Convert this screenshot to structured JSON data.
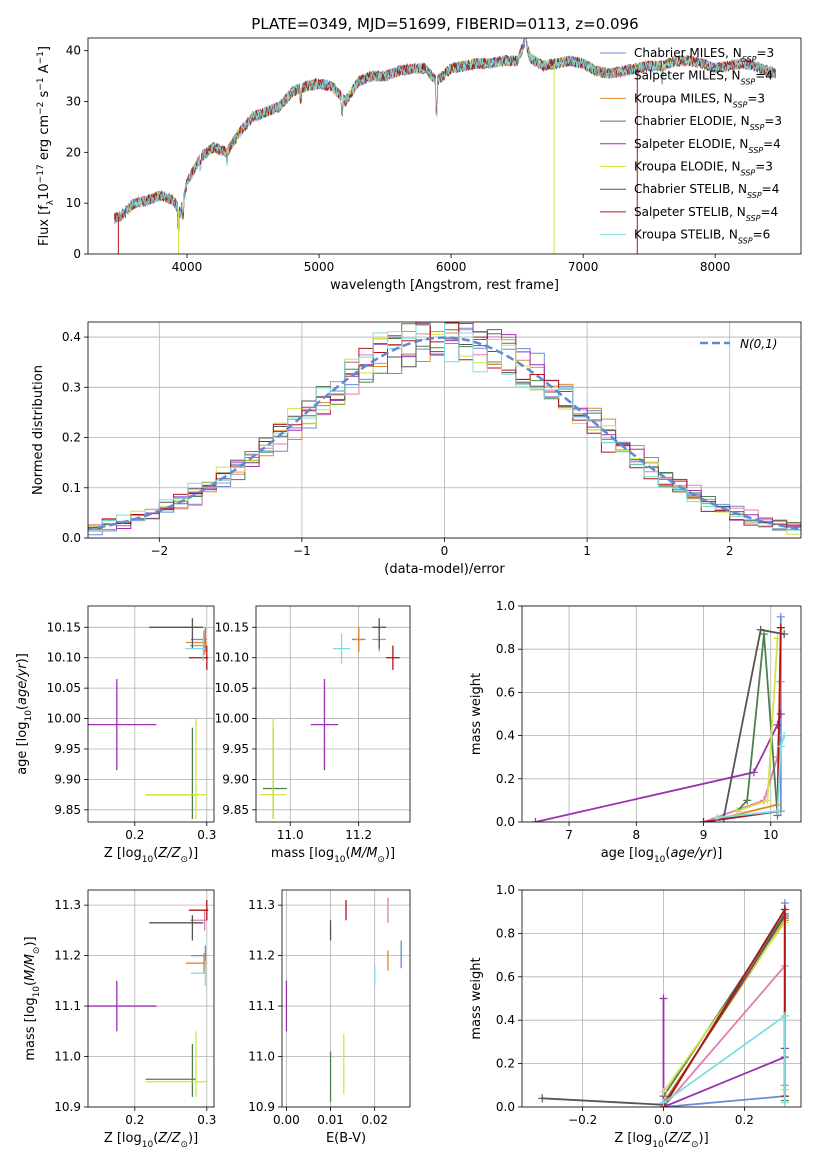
{
  "figure": {
    "title": "PLATE=0349, MJD=51699, FIBERID=0113, z=0.096"
  },
  "colors": {
    "Chabrier MILES": "#6a8bd8",
    "Salpeter MILES": "#e07eac",
    "Kroupa MILES": "#e08a2a",
    "Chabrier ELODIE": "#4f7f4f",
    "Salpeter ELODIE": "#9b30b0",
    "Kroupa ELODIE": "#d4e34a",
    "Chabrier STELIB": "#555555",
    "Salpeter STELIB": "#b01515",
    "Kroupa STELIB": "#7fdde0"
  },
  "legend_spectrum": [
    {
      "label": "Chabrier MILES, N_SSP=3",
      "color": "#6a8bd8"
    },
    {
      "label": "Salpeter MILES, N_SSP=4",
      "color": "#e07eac"
    },
    {
      "label": "Kroupa MILES, N_SSP=3",
      "color": "#e08a2a"
    },
    {
      "label": "Chabrier ELODIE, N_SSP=3",
      "color": "#4f7f4f"
    },
    {
      "label": "Salpeter ELODIE, N_SSP=4",
      "color": "#9b30b0"
    },
    {
      "label": "Kroupa ELODIE, N_SSP=3",
      "color": "#d4e34a"
    },
    {
      "label": "Chabrier STELIB, N_SSP=4",
      "color": "#555555"
    },
    {
      "label": "Salpeter STELIB, N_SSP=4",
      "color": "#b01515"
    },
    {
      "label": "Kroupa STELIB, N_SSP=6",
      "color": "#7fdde0"
    }
  ],
  "chart_data": [
    {
      "id": "spectrum",
      "type": "line",
      "xlabel": "wavelength [Angstrom, rest frame]",
      "ylabel": "Flux [f_λ10^-17 erg cm^-2 s^-1 A^-1]",
      "xlim": [
        3250,
        8650
      ],
      "ylim": [
        0,
        42.5
      ],
      "xticks": [
        4000,
        5000,
        6000,
        7000,
        8000
      ],
      "yticks": [
        0,
        10,
        20,
        30,
        40
      ],
      "grid": false,
      "legend": "top-right",
      "spectrum_envelope": {
        "x": [
          3450,
          3500,
          3600,
          3700,
          3800,
          3900,
          3950,
          4000,
          4100,
          4200,
          4300,
          4400,
          4500,
          4600,
          4700,
          4800,
          4900,
          5000,
          5100,
          5200,
          5300,
          5400,
          5500,
          5600,
          5700,
          5800,
          5890,
          6000,
          6100,
          6200,
          6300,
          6400,
          6500,
          6563,
          6600,
          6700,
          6800,
          6900,
          7000,
          7100,
          7200,
          7300,
          7400,
          7500,
          7600,
          7700,
          7800,
          7900,
          8000,
          8100,
          8200,
          8300,
          8400,
          8460
        ],
        "y": [
          7,
          7.5,
          10,
          10.5,
          11.5,
          10.5,
          8,
          14,
          19,
          21,
          20,
          24,
          27,
          28,
          29,
          32,
          33,
          33.5,
          33,
          30,
          34,
          35,
          35,
          36,
          36.5,
          36.5,
          34,
          36.5,
          37,
          37.5,
          37.5,
          38,
          38,
          42,
          38.5,
          37,
          37.5,
          38,
          37.5,
          36,
          35.5,
          36,
          36.5,
          37,
          37,
          38,
          38,
          37.5,
          36.5,
          37,
          37.5,
          37,
          36,
          35.5
        ]
      },
      "dropouts": [
        {
          "series": "Salpeter STELIB",
          "x": 3480
        },
        {
          "series": "Kroupa ELODIE",
          "x": 3935
        },
        {
          "series": "Kroupa ELODIE",
          "x": 6780
        },
        {
          "series": "Salpeter STELIB",
          "x": 7410
        }
      ]
    },
    {
      "id": "residuals",
      "type": "histogram",
      "xlabel": "(data-model)/error",
      "ylabel": "Normed distribution",
      "xlim": [
        -2.5,
        2.5
      ],
      "ylim": [
        0,
        0.43
      ],
      "xticks": [
        -2,
        -1,
        0,
        1,
        2
      ],
      "yticks": [
        0.0,
        0.1,
        0.2,
        0.3,
        0.4
      ],
      "grid": true,
      "legend": "top-right",
      "reference_curve": {
        "label": "N(0,1)",
        "mean": 0,
        "sigma": 1,
        "color": "#5b8bd6"
      },
      "bin_width": 0.1
    },
    {
      "id": "age_vs_Z",
      "type": "errorbar",
      "xlabel": "Z [log10(Z/Z⊙)]",
      "ylabel": "age  [log10(age/yr)]",
      "xlim": [
        0.135,
        0.31
      ],
      "ylim": [
        9.83,
        10.185
      ],
      "xticks": [
        0.2,
        0.3
      ],
      "yticks": [
        9.85,
        9.9,
        9.95,
        10.0,
        10.05,
        10.1,
        10.15
      ],
      "grid": true,
      "points": [
        {
          "series": "Chabrier MILES",
          "x": 0.298,
          "y": 10.13,
          "xerr": [
            0.02,
            0.002
          ],
          "yerr": [
            0.02,
            0.02
          ]
        },
        {
          "series": "Salpeter MILES",
          "x": 0.297,
          "y": 10.12,
          "xerr": [
            0.02,
            0.003
          ],
          "yerr": [
            0.015,
            0.02
          ]
        },
        {
          "series": "Kroupa MILES",
          "x": 0.296,
          "y": 10.125,
          "xerr": [
            0.025,
            0.004
          ],
          "yerr": [
            0.02,
            0.02
          ]
        },
        {
          "series": "Chabrier ELODIE",
          "x": 0.28,
          "y": 9.875,
          "xerr": [
            0.065,
            0.005
          ],
          "yerr": [
            0.04,
            0.11
          ]
        },
        {
          "series": "Salpeter ELODIE",
          "x": 0.175,
          "y": 9.99,
          "xerr": [
            0.055,
            0.055
          ],
          "yerr": [
            0.075,
            0.075
          ]
        },
        {
          "series": "Kroupa ELODIE",
          "x": 0.285,
          "y": 9.875,
          "xerr": [
            0.07,
            0.015
          ],
          "yerr": [
            0.04,
            0.125
          ]
        },
        {
          "series": "Chabrier STELIB",
          "x": 0.28,
          "y": 10.15,
          "xerr": [
            0.06,
            0.015
          ],
          "yerr": [
            0.035,
            0.015
          ]
        },
        {
          "series": "Salpeter STELIB",
          "x": 0.3,
          "y": 10.1,
          "xerr": [
            0.025,
            0.002
          ],
          "yerr": [
            0.02,
            0.02
          ]
        },
        {
          "series": "Kroupa STELIB",
          "x": 0.295,
          "y": 10.115,
          "xerr": [
            0.025,
            0.003
          ],
          "yerr": [
            0.02,
            0.02
          ]
        }
      ]
    },
    {
      "id": "age_vs_mass",
      "type": "errorbar",
      "xlabel": "mass [log10(M/M⊙)]",
      "ylabel": "",
      "xlim": [
        10.9,
        11.35
      ],
      "ylim": [
        9.83,
        10.185
      ],
      "xticks": [
        11.0,
        11.2
      ],
      "yticks": [
        9.85,
        9.9,
        9.95,
        10.0,
        10.05,
        10.1,
        10.15
      ],
      "grid": true,
      "points": [
        {
          "series": "Chabrier MILES",
          "x": 11.2,
          "y": 10.13,
          "xerr": [
            0.02,
            0.02
          ],
          "yerr": [
            0.02,
            0.02
          ]
        },
        {
          "series": "Salpeter MILES",
          "x": 11.26,
          "y": 10.13,
          "xerr": [
            0.02,
            0.02
          ],
          "yerr": [
            0.02,
            0.02
          ]
        },
        {
          "series": "Kroupa MILES",
          "x": 11.2,
          "y": 10.13,
          "xerr": [
            0.015,
            0.015
          ],
          "yerr": [
            0.02,
            0.02
          ]
        },
        {
          "series": "Chabrier ELODIE",
          "x": 10.95,
          "y": 9.885,
          "xerr": [
            0.03,
            0.04
          ],
          "yerr": [
            0.05,
            0.1
          ]
        },
        {
          "series": "Salpeter ELODIE",
          "x": 11.1,
          "y": 9.99,
          "xerr": [
            0.04,
            0.04
          ],
          "yerr": [
            0.075,
            0.075
          ]
        },
        {
          "series": "Kroupa ELODIE",
          "x": 10.95,
          "y": 9.875,
          "xerr": [
            0.04,
            0.04
          ],
          "yerr": [
            0.04,
            0.125
          ]
        },
        {
          "series": "Chabrier STELIB",
          "x": 11.26,
          "y": 10.15,
          "xerr": [
            0.02,
            0.02
          ],
          "yerr": [
            0.035,
            0.015
          ]
        },
        {
          "series": "Salpeter STELIB",
          "x": 11.3,
          "y": 10.1,
          "xerr": [
            0.02,
            0.02
          ],
          "yerr": [
            0.02,
            0.02
          ]
        },
        {
          "series": "Kroupa STELIB",
          "x": 11.15,
          "y": 10.115,
          "xerr": [
            0.025,
            0.025
          ],
          "yerr": [
            0.025,
            0.025
          ]
        }
      ]
    },
    {
      "id": "mass_vs_Z",
      "type": "errorbar",
      "xlabel": "Z [log10(Z/Z⊙)]",
      "ylabel": "mass [log10(M/M⊙)]",
      "xlim": [
        0.135,
        0.31
      ],
      "ylim": [
        10.9,
        11.33
      ],
      "xticks": [
        0.2,
        0.3
      ],
      "yticks": [
        10.9,
        11.0,
        11.1,
        11.2,
        11.3
      ],
      "grid": true,
      "points": [
        {
          "series": "Chabrier MILES",
          "x": 0.298,
          "y": 11.2,
          "xerr": [
            0.02,
            0.002
          ],
          "yerr": [
            0.02,
            0.02
          ]
        },
        {
          "series": "Salpeter MILES",
          "x": 0.297,
          "y": 11.27,
          "xerr": [
            0.02,
            0.003
          ],
          "yerr": [
            0.02,
            0.02
          ]
        },
        {
          "series": "Kroupa MILES",
          "x": 0.296,
          "y": 11.185,
          "xerr": [
            0.025,
            0.004
          ],
          "yerr": [
            0.02,
            0.02
          ]
        },
        {
          "series": "Chabrier ELODIE",
          "x": 0.28,
          "y": 10.955,
          "xerr": [
            0.065,
            0.005
          ],
          "yerr": [
            0.035,
            0.07
          ]
        },
        {
          "series": "Salpeter ELODIE",
          "x": 0.175,
          "y": 11.1,
          "xerr": [
            0.055,
            0.055
          ],
          "yerr": [
            0.05,
            0.05
          ]
        },
        {
          "series": "Kroupa ELODIE",
          "x": 0.285,
          "y": 10.95,
          "xerr": [
            0.07,
            0.015
          ],
          "yerr": [
            0.03,
            0.1
          ]
        },
        {
          "series": "Chabrier STELIB",
          "x": 0.28,
          "y": 11.265,
          "xerr": [
            0.06,
            0.015
          ],
          "yerr": [
            0.035,
            0.015
          ]
        },
        {
          "series": "Salpeter STELIB",
          "x": 0.3,
          "y": 11.29,
          "xerr": [
            0.025,
            0.002
          ],
          "yerr": [
            0.02,
            0.02
          ]
        },
        {
          "series": "Kroupa STELIB",
          "x": 0.298,
          "y": 11.165,
          "xerr": [
            0.02,
            0.002
          ],
          "yerr": [
            0.025,
            0.025
          ]
        }
      ]
    },
    {
      "id": "mass_vs_ebv",
      "type": "errorbar",
      "xlabel": "E(B-V)",
      "ylabel": "",
      "xlim": [
        -0.001,
        0.028
      ],
      "ylim": [
        10.9,
        11.33
      ],
      "xticks": [
        0.0,
        0.01,
        0.02
      ],
      "yticks": [
        10.9,
        11.0,
        11.1,
        11.2,
        11.3
      ],
      "grid": true,
      "points": [
        {
          "series": "Chabrier MILES",
          "x": 0.026,
          "y": 11.2,
          "xerr": [
            0,
            0
          ],
          "yerr": [
            0.025,
            0.03
          ]
        },
        {
          "series": "Salpeter MILES",
          "x": 0.023,
          "y": 11.29,
          "xerr": [
            0,
            0
          ],
          "yerr": [
            0.025,
            0.025
          ]
        },
        {
          "series": "Kroupa MILES",
          "x": 0.023,
          "y": 11.19,
          "xerr": [
            0,
            0
          ],
          "yerr": [
            0.02,
            0.02
          ]
        },
        {
          "series": "Chabrier ELODIE",
          "x": 0.01,
          "y": 10.96,
          "xerr": [
            0,
            0
          ],
          "yerr": [
            0.05,
            0.05
          ]
        },
        {
          "series": "Salpeter ELODIE",
          "x": 0.0,
          "y": 11.1,
          "xerr": [
            0,
            0
          ],
          "yerr": [
            0.05,
            0.05
          ]
        },
        {
          "series": "Kroupa ELODIE",
          "x": 0.013,
          "y": 10.985,
          "xerr": [
            0,
            0
          ],
          "yerr": [
            0.06,
            0.06
          ]
        },
        {
          "series": "Chabrier STELIB",
          "x": 0.01,
          "y": 11.26,
          "xerr": [
            0,
            0
          ],
          "yerr": [
            0.03,
            0.01
          ]
        },
        {
          "series": "Salpeter STELIB",
          "x": 0.0135,
          "y": 11.29,
          "xerr": [
            0,
            0
          ],
          "yerr": [
            0.02,
            0.02
          ]
        },
        {
          "series": "Kroupa STELIB",
          "x": 0.02,
          "y": 11.16,
          "xerr": [
            0,
            0
          ],
          "yerr": [
            0.02,
            0.02
          ]
        }
      ]
    },
    {
      "id": "weight_vs_age",
      "type": "line",
      "xlabel": "age  [log10(age/yr)]",
      "ylabel": "mass weight",
      "xlim": [
        6.3,
        10.45
      ],
      "ylim": [
        0.0,
        1.0
      ],
      "xticks": [
        7,
        8,
        9,
        10
      ],
      "yticks": [
        0.0,
        0.2,
        0.4,
        0.6,
        0.8,
        1.0
      ],
      "grid": true,
      "series": [
        {
          "name": "Chabrier MILES",
          "x": [
            9.0,
            10.15,
            10.15
          ],
          "y": [
            0.0,
            0.05,
            0.95
          ]
        },
        {
          "name": "Salpeter MILES",
          "x": [
            9.0,
            9.9,
            10.1,
            10.15
          ],
          "y": [
            0.0,
            0.1,
            0.3,
            0.65
          ]
        },
        {
          "name": "Kroupa MILES",
          "x": [
            9.3,
            10.1,
            10.15
          ],
          "y": [
            0.02,
            0.08,
            0.9
          ]
        },
        {
          "name": "Chabrier ELODIE",
          "x": [
            9.5,
            9.65,
            9.9,
            10.1
          ],
          "y": [
            0.05,
            0.1,
            0.87,
            0.03
          ]
        },
        {
          "name": "Salpeter ELODIE",
          "x": [
            6.5,
            9.75,
            10.1,
            10.15
          ],
          "y": [
            0.0,
            0.23,
            0.45,
            0.5
          ]
        },
        {
          "name": "Kroupa ELODIE",
          "x": [
            9.5,
            9.95,
            10.1
          ],
          "y": [
            0.05,
            0.1,
            0.85
          ]
        },
        {
          "name": "Chabrier STELIB",
          "x": [
            9.3,
            9.85,
            10.2
          ],
          "y": [
            0.02,
            0.89,
            0.87
          ]
        },
        {
          "name": "Salpeter STELIB",
          "x": [
            9.0,
            10.1,
            10.15
          ],
          "y": [
            0.0,
            0.05,
            0.9
          ]
        },
        {
          "name": "Kroupa STELIB",
          "x": [
            9.2,
            10.1,
            10.15,
            10.2
          ],
          "y": [
            0.02,
            0.05,
            0.35,
            0.4
          ]
        }
      ]
    },
    {
      "id": "weight_vs_Z",
      "type": "line",
      "xlabel": "Z [log10(Z/Z⊙)]",
      "ylabel": "mass weight",
      "xlim": [
        -0.35,
        0.34
      ],
      "ylim": [
        0.0,
        1.0
      ],
      "xticks": [
        -0.2,
        0.0,
        0.2
      ],
      "yticks": [
        0.0,
        0.2,
        0.4,
        0.6,
        0.8,
        1.0
      ],
      "grid": true,
      "series": [
        {
          "name": "Chabrier MILES",
          "x": [
            0.0,
            0.3,
            0.3
          ],
          "y": [
            0.0,
            0.05,
            0.94
          ]
        },
        {
          "name": "Salpeter MILES",
          "x": [
            0.0,
            0.3,
            0.3
          ],
          "y": [
            0.0,
            0.65,
            0.1
          ]
        },
        {
          "name": "Kroupa MILES",
          "x": [
            0.0,
            0.3,
            0.3
          ],
          "y": [
            0.02,
            0.86,
            0.05
          ]
        },
        {
          "name": "Chabrier ELODIE",
          "x": [
            0.0,
            0.3,
            0.3
          ],
          "y": [
            0.05,
            0.89,
            0.03
          ]
        },
        {
          "name": "Salpeter ELODIE",
          "x": [
            0.0,
            0.0,
            0.3,
            0.3
          ],
          "y": [
            0.5,
            0.0,
            0.23,
            0.27
          ]
        },
        {
          "name": "Kroupa ELODIE",
          "x": [
            0.0,
            0.3,
            0.3
          ],
          "y": [
            0.07,
            0.85,
            0.08
          ]
        },
        {
          "name": "Chabrier STELIB",
          "x": [
            -0.3,
            0.0,
            0.3,
            0.3
          ],
          "y": [
            0.04,
            0.01,
            0.88,
            0.87
          ]
        },
        {
          "name": "Salpeter STELIB",
          "x": [
            0.0,
            0.3,
            0.3
          ],
          "y": [
            0.0,
            0.91,
            0.05
          ]
        },
        {
          "name": "Kroupa STELIB",
          "x": [
            0.0,
            0.3,
            0.3
          ],
          "y": [
            0.02,
            0.42,
            0.02
          ]
        }
      ]
    }
  ]
}
